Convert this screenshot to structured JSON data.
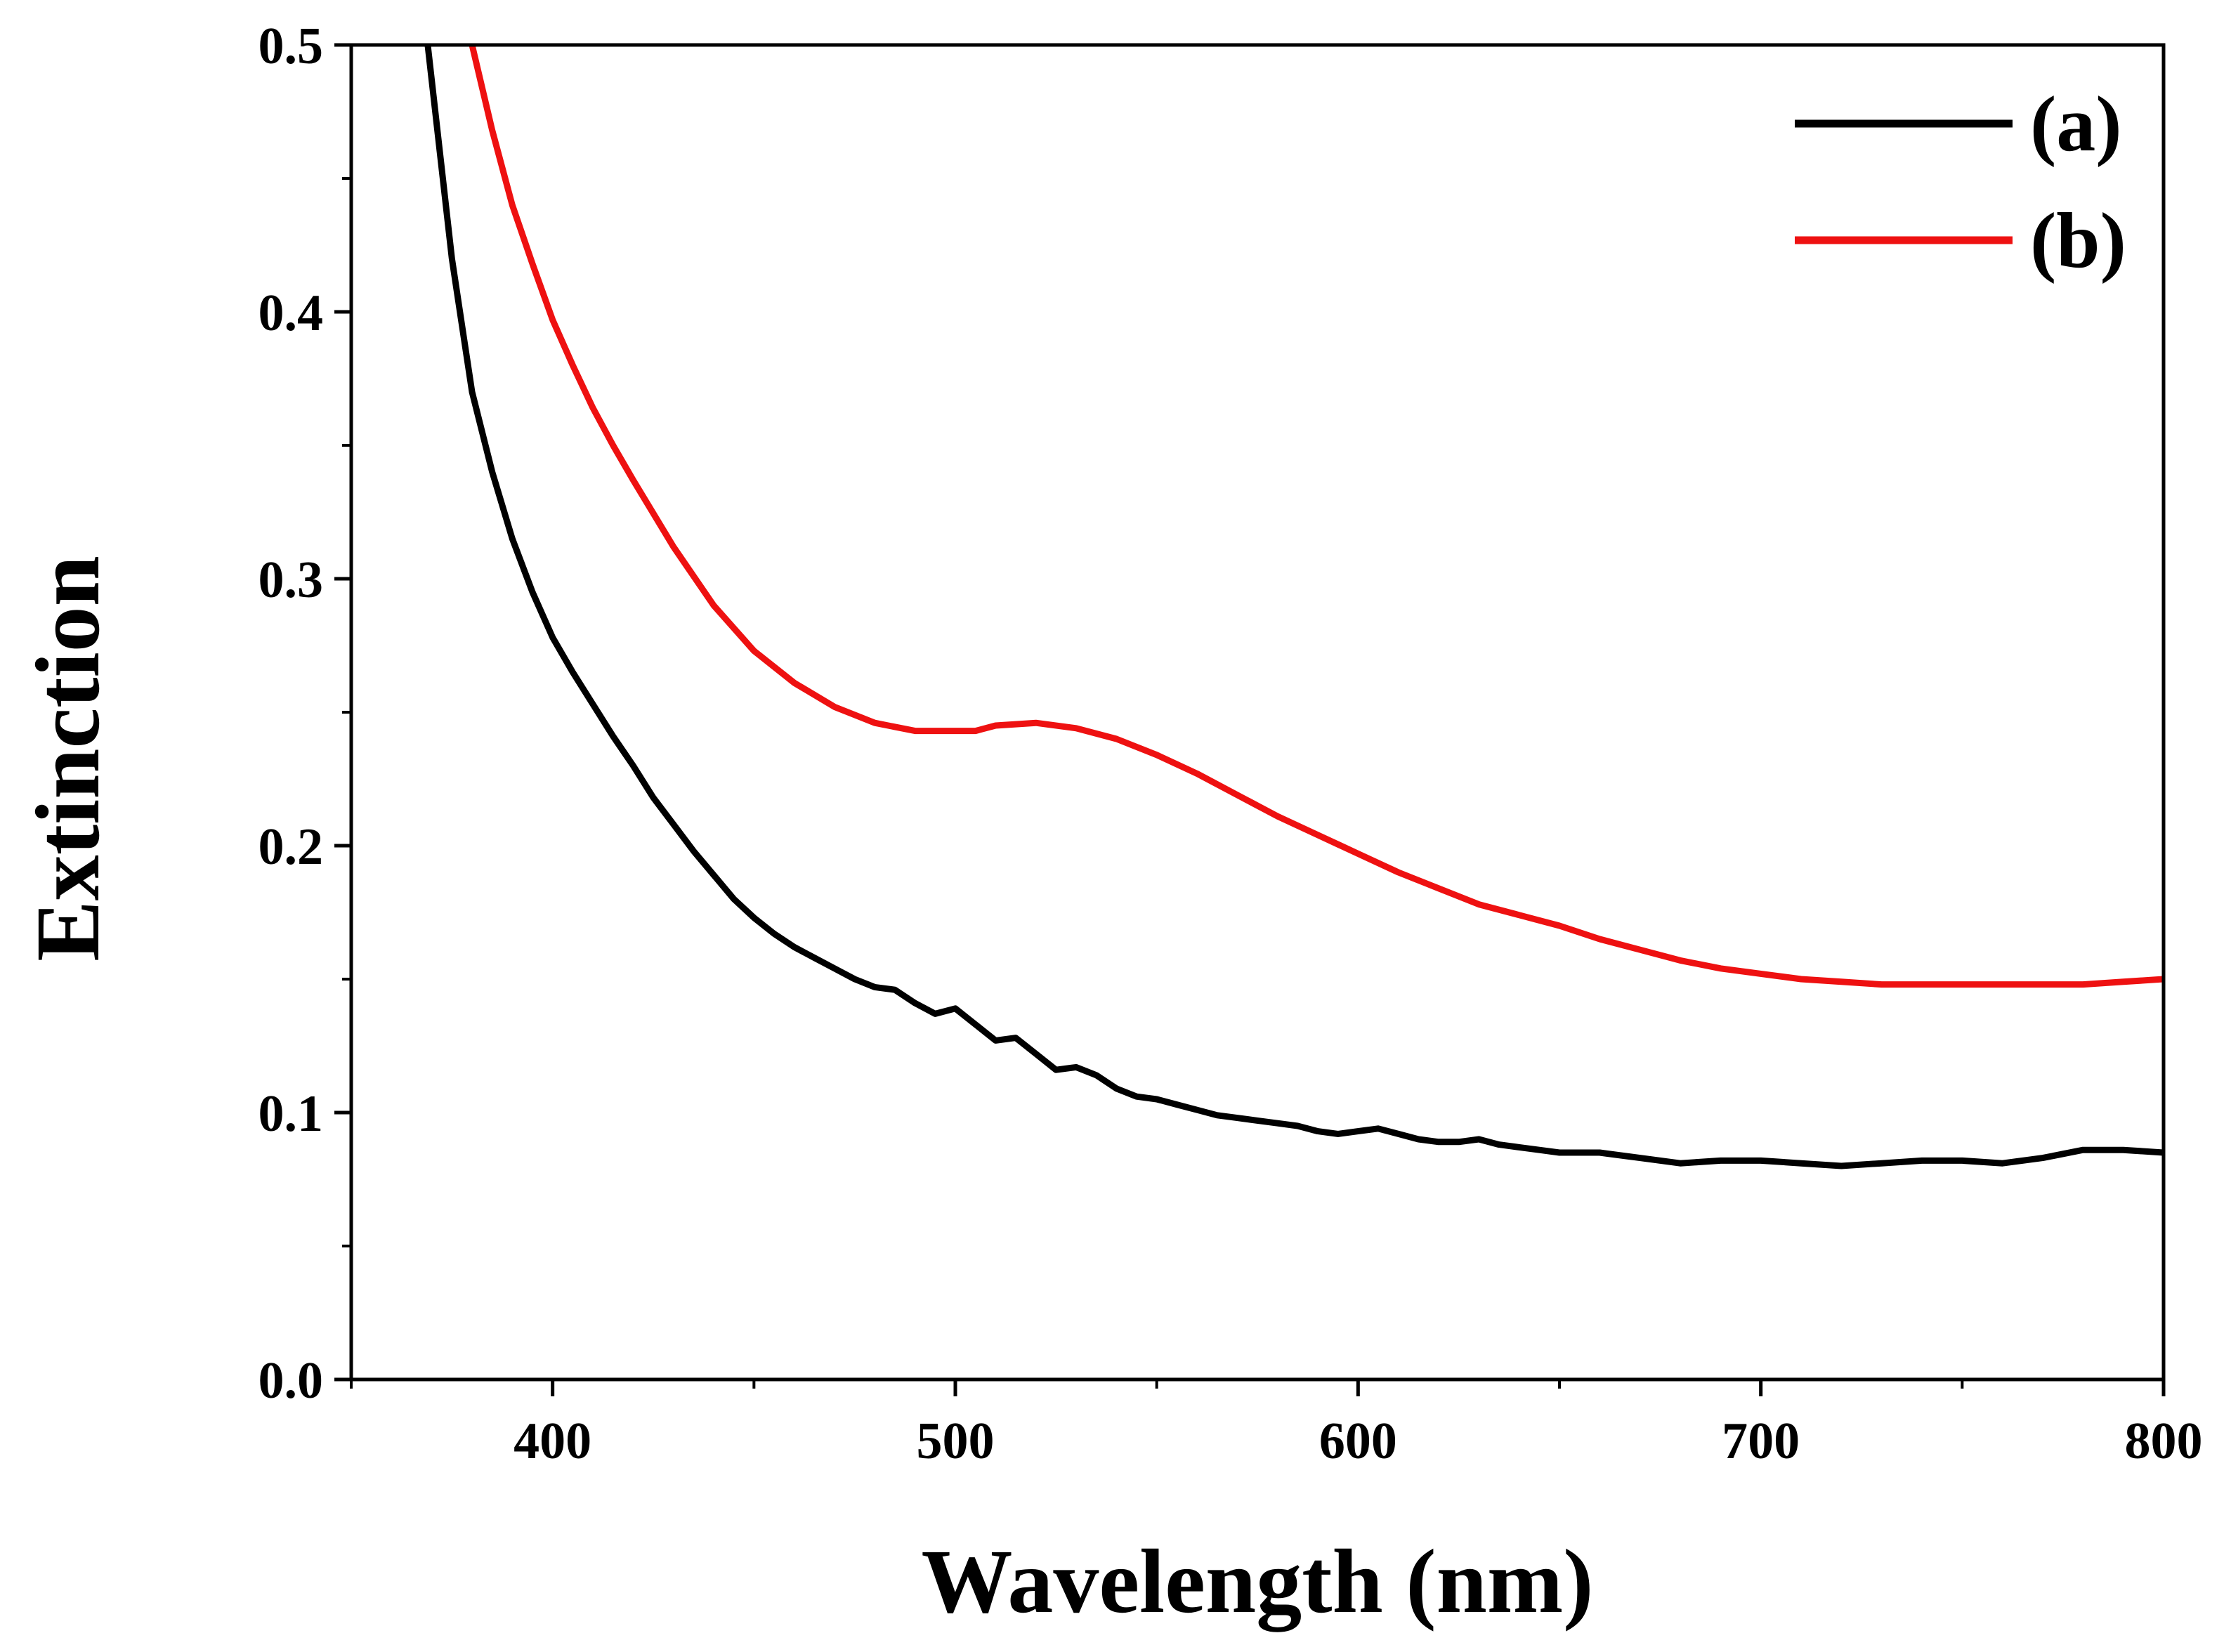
{
  "chart_data": {
    "type": "line",
    "title": "",
    "xlabel": "Wavelength (nm)",
    "ylabel": "Extinction",
    "xlim": [
      350,
      800
    ],
    "ylim": [
      0.0,
      0.5
    ],
    "xticks": [
      400,
      500,
      600,
      700,
      800
    ],
    "xtick_labels": [
      "400",
      "500",
      "600",
      "700",
      "800"
    ],
    "yticks": [
      0.0,
      0.1,
      0.2,
      0.3,
      0.4,
      0.5
    ],
    "ytick_labels": [
      "0.0",
      "0.1",
      "0.2",
      "0.3",
      "0.4",
      "0.5"
    ],
    "grid": false,
    "legend_position": "top-right",
    "series": [
      {
        "name": "(a)",
        "color": "#000000",
        "x": [
          369,
          372,
          375,
          378,
          380,
          385,
          390,
          395,
          400,
          405,
          410,
          415,
          420,
          425,
          430,
          435,
          440,
          445,
          450,
          455,
          460,
          465,
          470,
          475,
          480,
          485,
          490,
          495,
          500,
          505,
          510,
          515,
          520,
          525,
          530,
          535,
          540,
          545,
          550,
          555,
          560,
          565,
          570,
          575,
          580,
          585,
          590,
          595,
          600,
          605,
          610,
          615,
          620,
          625,
          630,
          635,
          640,
          645,
          650,
          660,
          670,
          680,
          690,
          700,
          710,
          720,
          730,
          740,
          750,
          760,
          770,
          780,
          790,
          800
        ],
        "values": [
          0.5,
          0.46,
          0.42,
          0.39,
          0.37,
          0.34,
          0.315,
          0.295,
          0.278,
          0.265,
          0.253,
          0.241,
          0.23,
          0.218,
          0.208,
          0.198,
          0.189,
          0.18,
          0.173,
          0.167,
          0.162,
          0.158,
          0.154,
          0.15,
          0.147,
          0.146,
          0.141,
          0.137,
          0.139,
          0.133,
          0.127,
          0.128,
          0.122,
          0.116,
          0.117,
          0.114,
          0.109,
          0.106,
          0.105,
          0.103,
          0.101,
          0.099,
          0.098,
          0.097,
          0.096,
          0.095,
          0.093,
          0.092,
          0.093,
          0.094,
          0.092,
          0.09,
          0.089,
          0.089,
          0.09,
          0.088,
          0.087,
          0.086,
          0.085,
          0.085,
          0.083,
          0.081,
          0.082,
          0.082,
          0.081,
          0.08,
          0.081,
          0.082,
          0.082,
          0.081,
          0.083,
          0.086,
          0.086,
          0.085
        ]
      },
      {
        "name": "(b)",
        "color": "#ee1111",
        "x": [
          380,
          385,
          390,
          395,
          400,
          405,
          410,
          415,
          420,
          430,
          440,
          450,
          460,
          470,
          480,
          490,
          500,
          505,
          510,
          520,
          530,
          540,
          550,
          560,
          570,
          580,
          590,
          600,
          610,
          620,
          630,
          640,
          650,
          660,
          670,
          680,
          690,
          700,
          710,
          720,
          730,
          740,
          750,
          760,
          770,
          780,
          790,
          800
        ],
        "values": [
          0.5,
          0.468,
          0.44,
          0.418,
          0.397,
          0.38,
          0.364,
          0.35,
          0.337,
          0.312,
          0.29,
          0.273,
          0.261,
          0.252,
          0.246,
          0.243,
          0.243,
          0.243,
          0.245,
          0.246,
          0.244,
          0.24,
          0.234,
          0.227,
          0.219,
          0.211,
          0.204,
          0.197,
          0.19,
          0.184,
          0.178,
          0.174,
          0.17,
          0.165,
          0.161,
          0.157,
          0.154,
          0.152,
          0.15,
          0.149,
          0.148,
          0.148,
          0.148,
          0.148,
          0.148,
          0.148,
          0.149,
          0.15
        ]
      }
    ]
  }
}
